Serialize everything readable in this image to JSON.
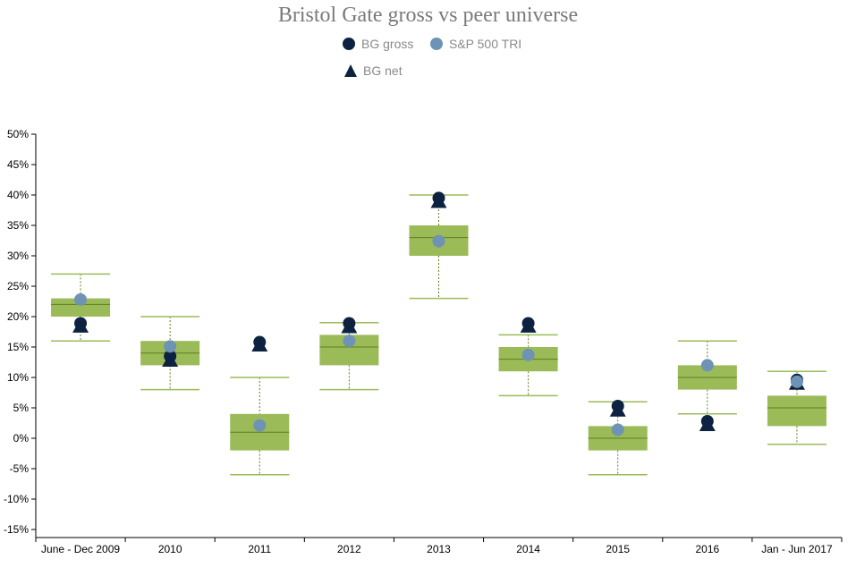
{
  "chart_data": {
    "type": "box",
    "title": "Bristol Gate gross vs peer universe",
    "xlabel": "",
    "ylabel": "",
    "categories": [
      "June - Dec 2009",
      "2010",
      "2011",
      "2012",
      "2013",
      "2014",
      "2015",
      "2016",
      "Jan - Jun 2017"
    ],
    "ylim": [
      -15,
      50
    ],
    "yticks": [
      -15,
      -10,
      -5,
      0,
      5,
      10,
      15,
      20,
      25,
      30,
      35,
      40,
      45,
      50
    ],
    "ytick_labels": [
      "-15%",
      "-10%",
      "-5%",
      "0%",
      "5%",
      "10%",
      "15%",
      "20%",
      "25%",
      "30%",
      "35%",
      "40%",
      "45%",
      "50%"
    ],
    "boxes": [
      {
        "min": 16,
        "q1": 20,
        "median": 22,
        "q3": 23,
        "max": 27
      },
      {
        "min": 8,
        "q1": 12,
        "median": 14,
        "q3": 16,
        "max": 20
      },
      {
        "min": -6,
        "q1": -2,
        "median": 1,
        "q3": 4,
        "max": 10
      },
      {
        "min": 8,
        "q1": 12,
        "median": 15,
        "q3": 17,
        "max": 19
      },
      {
        "min": 23,
        "q1": 30,
        "median": 33,
        "q3": 35,
        "max": 40
      },
      {
        "min": 7,
        "q1": 11,
        "median": 13,
        "q3": 15,
        "max": 17
      },
      {
        "min": -6,
        "q1": -2,
        "median": 0,
        "q3": 2,
        "max": 6
      },
      {
        "min": 4,
        "q1": 8,
        "median": 10,
        "q3": 12,
        "max": 16
      },
      {
        "min": -1,
        "q1": 2,
        "median": 5,
        "q3": 7,
        "max": 11
      }
    ],
    "series": [
      {
        "name": "BG gross",
        "marker": "circle",
        "color": "#0d2240",
        "values": [
          18.9,
          13.5,
          15.8,
          18.9,
          39.5,
          18.9,
          5.3,
          2.8,
          9.6
        ]
      },
      {
        "name": "S&P 500 TRI",
        "marker": "circle",
        "color": "#6e93b4",
        "values": [
          22.8,
          15.1,
          2.1,
          16.0,
          32.4,
          13.7,
          1.4,
          12.0,
          9.3
        ]
      },
      {
        "name": "BG net",
        "marker": "triangle",
        "color": "#0d2240",
        "values": [
          18.4,
          12.8,
          15.3,
          18.3,
          38.9,
          18.4,
          4.6,
          2.2,
          9.0
        ]
      }
    ],
    "box_color": "#9bbb59",
    "box_line_color": "#5e7f1f",
    "legend_position": "top-center",
    "grid": false
  }
}
